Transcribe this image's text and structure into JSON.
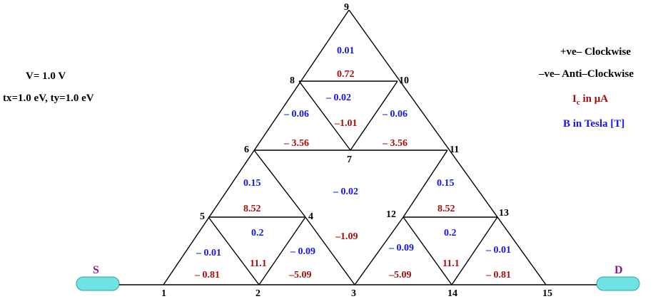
{
  "params": {
    "voltage": "V= 1.0 V",
    "hopping": "tx=1.0 eV, ty=1.0 eV"
  },
  "legend": {
    "clockwise": "+ve– Clockwise",
    "anticlockwise": "–ve– Anti–Clockwise",
    "current_main": "I",
    "current_sub": "c",
    "current_rest": " in   μA",
    "field": "B in Tesla [T]"
  },
  "leads": {
    "source": "S",
    "drain": "D"
  },
  "nodes": {
    "n1": "1",
    "n2": "2",
    "n3": "3",
    "n4": "4",
    "n5": "5",
    "n6": "6",
    "n7": "7",
    "n8": "8",
    "n9": "9",
    "n10": "10",
    "n11": "11",
    "n12": "12",
    "n13": "13",
    "n14": "14",
    "n15": "15"
  },
  "fields_B": {
    "top": "0.01",
    "upper_mid": "– 0.02",
    "upper_left": "– 0.06",
    "upper_right": "– 0.06",
    "left_big": "0.15",
    "center": "– 0.02",
    "right_big": "0.15",
    "left_inner": "0.2",
    "right_inner": "0.2",
    "bl_left": "– 0.01",
    "bl_right": "– 0.09",
    "br_left": "– 0.09",
    "br_right": "– 0.01"
  },
  "currents_Ic": {
    "top": "0.72",
    "upper_mid": "–1.01",
    "left_upper": "– 3.56",
    "right_upper": "– 3.56",
    "left_mid": "8.52",
    "right_mid": "8.52",
    "center": "–1.09",
    "left_inner": "11.1",
    "right_inner": "11.1",
    "bl_left": "– 0.81",
    "bl_right": "–5.09",
    "br_left": "–5.09",
    "br_right": "– 0.81"
  },
  "colors": {
    "field_color": "#1515e6",
    "current_color": "#a80e0e",
    "lead_color": "#6fe3e3",
    "lead_label_color": "#8b1a8b"
  }
}
